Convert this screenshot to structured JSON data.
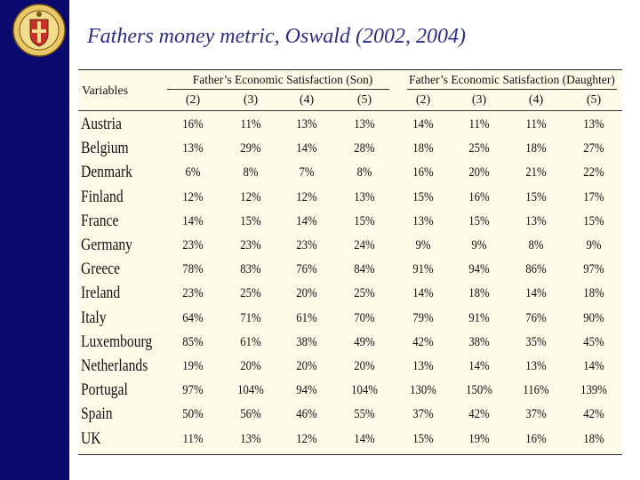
{
  "slide": {
    "title": "Fathers money metric, Oswald (2002, 2004)"
  },
  "table": {
    "variables_label": "Variables",
    "group_son": "Father’s Economic Satisfaction (Son)",
    "group_daughter": "Father’s Economic Satisfaction (Daughter)",
    "columns": [
      "(2)",
      "(3)",
      "(4)",
      "(5)",
      "(2)",
      "(3)",
      "(4)",
      "(5)"
    ],
    "rows": [
      {
        "country": "Austria",
        "values": [
          "16%",
          "11%",
          "13%",
          "13%",
          "14%",
          "11%",
          "11%",
          "13%"
        ]
      },
      {
        "country": "Belgium",
        "values": [
          "13%",
          "29%",
          "14%",
          "28%",
          "18%",
          "25%",
          "18%",
          "27%"
        ]
      },
      {
        "country": "Denmark",
        "values": [
          "6%",
          "8%",
          "7%",
          "8%",
          "16%",
          "20%",
          "21%",
          "22%"
        ]
      },
      {
        "country": "Finland",
        "values": [
          "12%",
          "12%",
          "12%",
          "13%",
          "15%",
          "16%",
          "15%",
          "17%"
        ]
      },
      {
        "country": "France",
        "values": [
          "14%",
          "15%",
          "14%",
          "15%",
          "13%",
          "15%",
          "13%",
          "15%"
        ]
      },
      {
        "country": "Germany",
        "values": [
          "23%",
          "23%",
          "23%",
          "24%",
          "9%",
          "9%",
          "8%",
          "9%"
        ]
      },
      {
        "country": "Greece",
        "values": [
          "78%",
          "83%",
          "76%",
          "84%",
          "91%",
          "94%",
          "86%",
          "97%"
        ]
      },
      {
        "country": "Ireland",
        "values": [
          "23%",
          "25%",
          "20%",
          "25%",
          "14%",
          "18%",
          "14%",
          "18%"
        ]
      },
      {
        "country": "Italy",
        "values": [
          "64%",
          "71%",
          "61%",
          "70%",
          "79%",
          "91%",
          "76%",
          "90%"
        ]
      },
      {
        "country": "Luxembourg",
        "values": [
          "85%",
          "61%",
          "38%",
          "49%",
          "42%",
          "38%",
          "35%",
          "45%"
        ]
      },
      {
        "country": "Netherlands",
        "values": [
          "19%",
          "20%",
          "20%",
          "20%",
          "13%",
          "14%",
          "13%",
          "14%"
        ]
      },
      {
        "country": "Portugal",
        "values": [
          "97%",
          "104%",
          "94%",
          "104%",
          "130%",
          "150%",
          "116%",
          "139%"
        ]
      },
      {
        "country": "Spain",
        "values": [
          "50%",
          "56%",
          "46%",
          "55%",
          "37%",
          "42%",
          "37%",
          "42%"
        ]
      },
      {
        "country": "UK",
        "values": [
          "11%",
          "13%",
          "12%",
          "14%",
          "15%",
          "19%",
          "16%",
          "18%"
        ]
      }
    ]
  }
}
